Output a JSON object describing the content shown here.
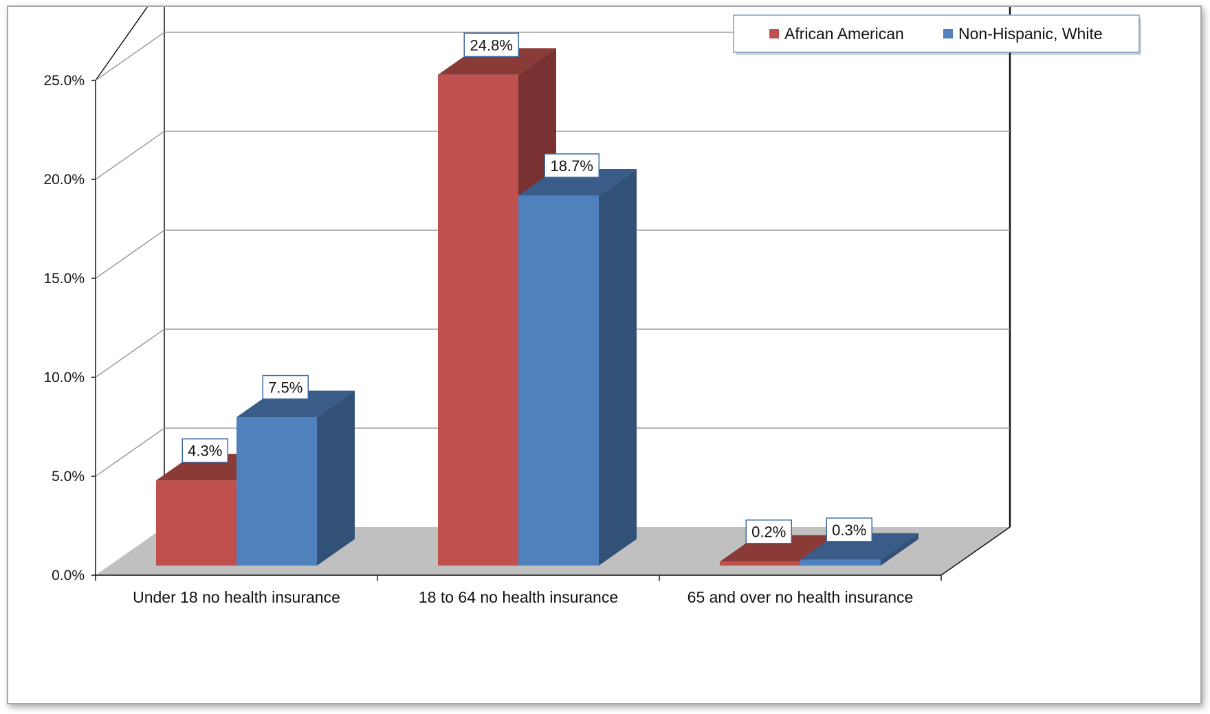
{
  "chart_data": {
    "type": "bar",
    "style": "3d-clustered-column",
    "categories": [
      "Under 18  no health insurance",
      "18 to 64 no health insurance",
      "65 and over no health insurance"
    ],
    "series": [
      {
        "name": "African American",
        "values": [
          4.3,
          24.8,
          0.2
        ],
        "labels": [
          "4.3%",
          "24.8%",
          "0.2%"
        ],
        "color": "#c0504d"
      },
      {
        "name": "Non-Hispanic, White",
        "values": [
          7.5,
          18.7,
          0.3
        ],
        "labels": [
          "7.5%",
          "18.7%",
          "0.3%"
        ],
        "color": "#4f81bd"
      }
    ],
    "y_ticks": [
      0,
      5,
      10,
      15,
      20,
      25
    ],
    "y_tick_labels": [
      "0.0%",
      "5.0%",
      "10.0%",
      "15.0%",
      "20.0%",
      "25.0%"
    ],
    "ylim": [
      0,
      25
    ],
    "grid": true,
    "legend_position": "top-right",
    "floor_color": "#c0c0c0"
  }
}
